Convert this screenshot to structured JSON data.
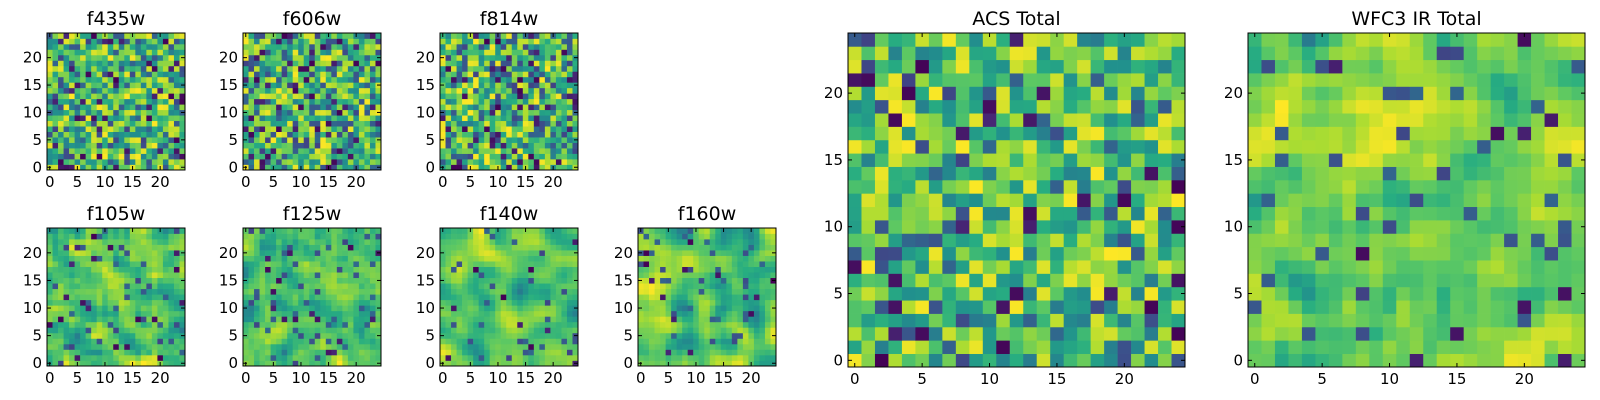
{
  "chart_data": [
    {
      "type": "heatmap",
      "title": "f435w",
      "xticks": [
        "0",
        "5",
        "10",
        "15",
        "20"
      ],
      "yticks": [
        "0",
        "5",
        "10",
        "15",
        "20"
      ],
      "xlim": [
        -0.5,
        24.5
      ],
      "ylim": [
        -0.5,
        24.5
      ],
      "grid_size": 25,
      "colormap": "viridis",
      "seed": 435,
      "smoothing": 0,
      "dark_fraction": 0.06
    },
    {
      "type": "heatmap",
      "title": "f606w",
      "xticks": [
        "0",
        "5",
        "10",
        "15",
        "20"
      ],
      "yticks": [
        "0",
        "5",
        "10",
        "15",
        "20"
      ],
      "xlim": [
        -0.5,
        24.5
      ],
      "ylim": [
        -0.5,
        24.5
      ],
      "grid_size": 25,
      "colormap": "viridis",
      "seed": 606,
      "smoothing": 0,
      "dark_fraction": 0.08
    },
    {
      "type": "heatmap",
      "title": "f814w",
      "xticks": [
        "0",
        "5",
        "10",
        "15",
        "20"
      ],
      "yticks": [
        "0",
        "5",
        "10",
        "15",
        "20"
      ],
      "xlim": [
        -0.5,
        24.5
      ],
      "ylim": [
        -0.5,
        24.5
      ],
      "grid_size": 25,
      "colormap": "viridis",
      "seed": 814,
      "smoothing": 0,
      "dark_fraction": 0.08
    },
    {
      "type": "heatmap",
      "title": "f105w",
      "xticks": [
        "0",
        "5",
        "10",
        "15",
        "20"
      ],
      "yticks": [
        "0",
        "5",
        "10",
        "15",
        "20"
      ],
      "xlim": [
        -0.5,
        24.5
      ],
      "ylim": [
        -0.5,
        24.5
      ],
      "grid_size": 25,
      "colormap": "viridis",
      "seed": 105,
      "smoothing": 1,
      "dark_fraction": 0.03
    },
    {
      "type": "heatmap",
      "title": "f125w",
      "xticks": [
        "0",
        "5",
        "10",
        "15",
        "20"
      ],
      "yticks": [
        "0",
        "5",
        "10",
        "15",
        "20"
      ],
      "xlim": [
        -0.5,
        24.5
      ],
      "ylim": [
        -0.5,
        24.5
      ],
      "grid_size": 25,
      "colormap": "viridis",
      "seed": 125,
      "smoothing": 1,
      "dark_fraction": 0.03
    },
    {
      "type": "heatmap",
      "title": "f140w",
      "xticks": [
        "0",
        "5",
        "10",
        "15",
        "20"
      ],
      "yticks": [
        "0",
        "5",
        "10",
        "15",
        "20"
      ],
      "xlim": [
        -0.5,
        24.5
      ],
      "ylim": [
        -0.5,
        24.5
      ],
      "grid_size": 25,
      "colormap": "viridis",
      "seed": 140,
      "smoothing": 2,
      "dark_fraction": 0.02
    },
    {
      "type": "heatmap",
      "title": "f160w",
      "xticks": [
        "0",
        "5",
        "10",
        "15",
        "20"
      ],
      "yticks": [
        "0",
        "5",
        "10",
        "15",
        "20"
      ],
      "xlim": [
        -0.5,
        24.5
      ],
      "ylim": [
        -0.5,
        24.5
      ],
      "grid_size": 25,
      "colormap": "viridis",
      "seed": 160,
      "smoothing": 2,
      "dark_fraction": 0.02
    },
    {
      "type": "heatmap",
      "title": "ACS Total",
      "xticks": [
        "0",
        "5",
        "10",
        "15",
        "20"
      ],
      "yticks": [
        "0",
        "5",
        "10",
        "15",
        "20"
      ],
      "xlim": [
        -0.5,
        24.5
      ],
      "ylim": [
        -0.5,
        24.5
      ],
      "grid_size": 25,
      "colormap": "viridis",
      "seed": 999,
      "smoothing": 0,
      "dark_fraction": 0.04
    },
    {
      "type": "heatmap",
      "title": "WFC3 IR Total",
      "xticks": [
        "0",
        "5",
        "10",
        "15",
        "20"
      ],
      "yticks": [
        "0",
        "5",
        "10",
        "15",
        "20"
      ],
      "xlim": [
        -0.5,
        24.5
      ],
      "ylim": [
        -0.5,
        24.5
      ],
      "grid_size": 25,
      "colormap": "viridis",
      "seed": 777,
      "smoothing": 1,
      "dark_fraction": 0.02
    }
  ]
}
